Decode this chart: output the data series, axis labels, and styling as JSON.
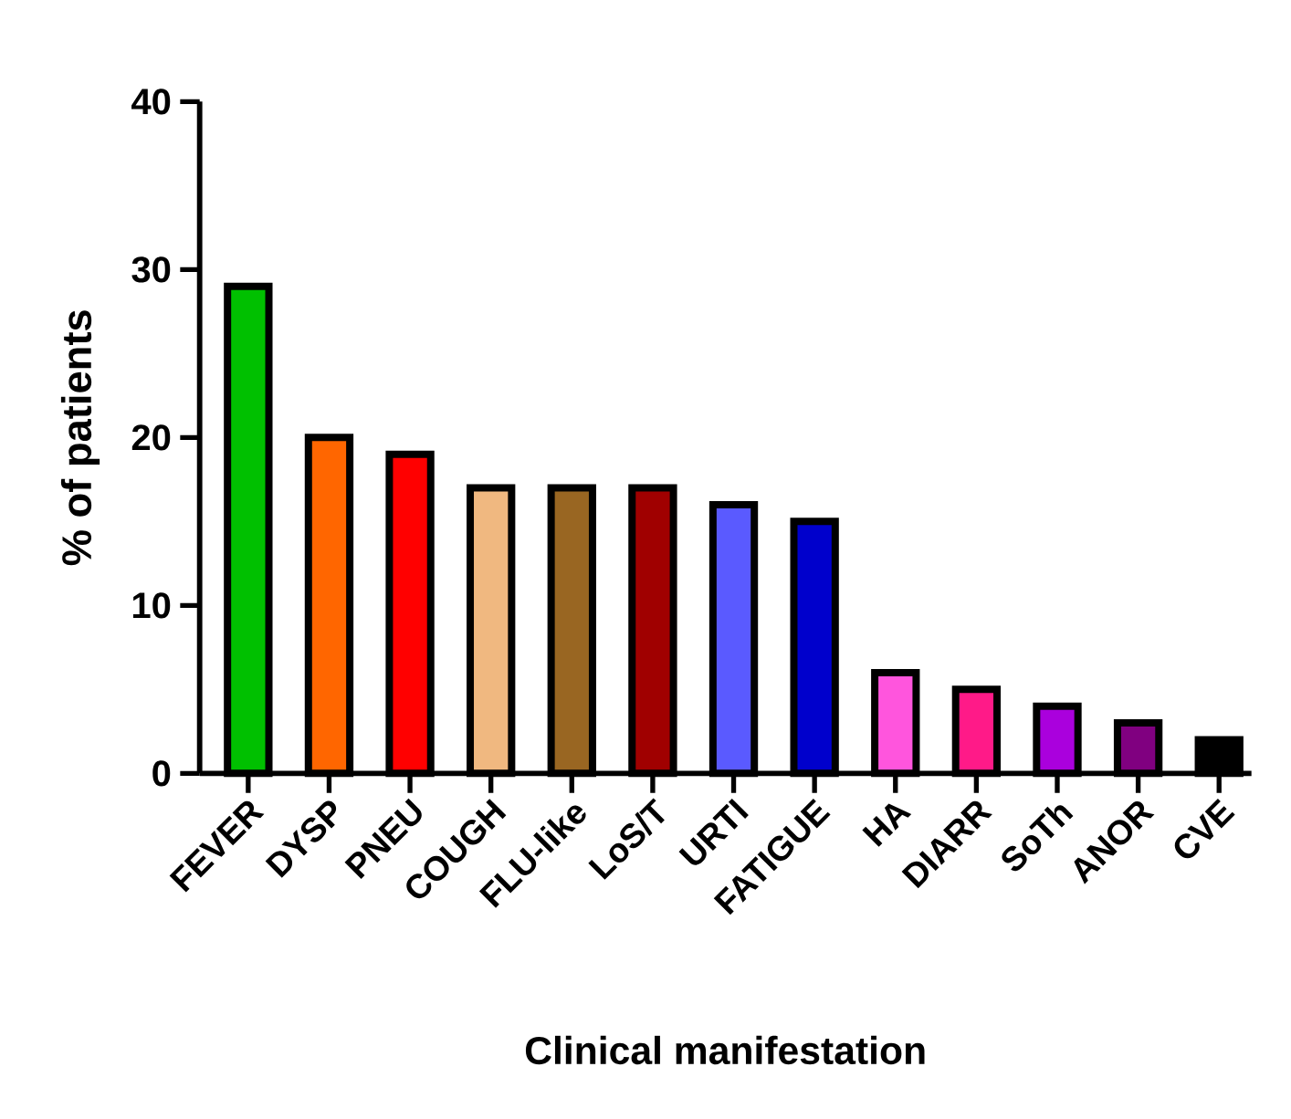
{
  "chart_data": {
    "type": "bar",
    "xlabel": "Clinical manifestation",
    "ylabel": "% of patients",
    "categories": [
      "FEVER",
      "DYSP",
      "PNEU",
      "COUGH",
      "FLU-like",
      "LoS/T",
      "URTI",
      "FATIGUE",
      "HA",
      "DIARR",
      "SoTh",
      "ANOR",
      "CVE"
    ],
    "values": [
      29,
      20,
      19,
      17,
      17,
      17,
      16,
      15,
      6,
      5,
      4,
      3,
      2
    ],
    "colors": [
      "#00c000",
      "#ff6600",
      "#ff0000",
      "#f0b880",
      "#996622",
      "#a00000",
      "#5a5aff",
      "#0000cc",
      "#ff55dd",
      "#ff1a88",
      "#aa00dd",
      "#800080",
      "#000000"
    ],
    "ylim": [
      0,
      40
    ],
    "yticks": [
      0,
      10,
      20,
      30,
      40
    ]
  }
}
